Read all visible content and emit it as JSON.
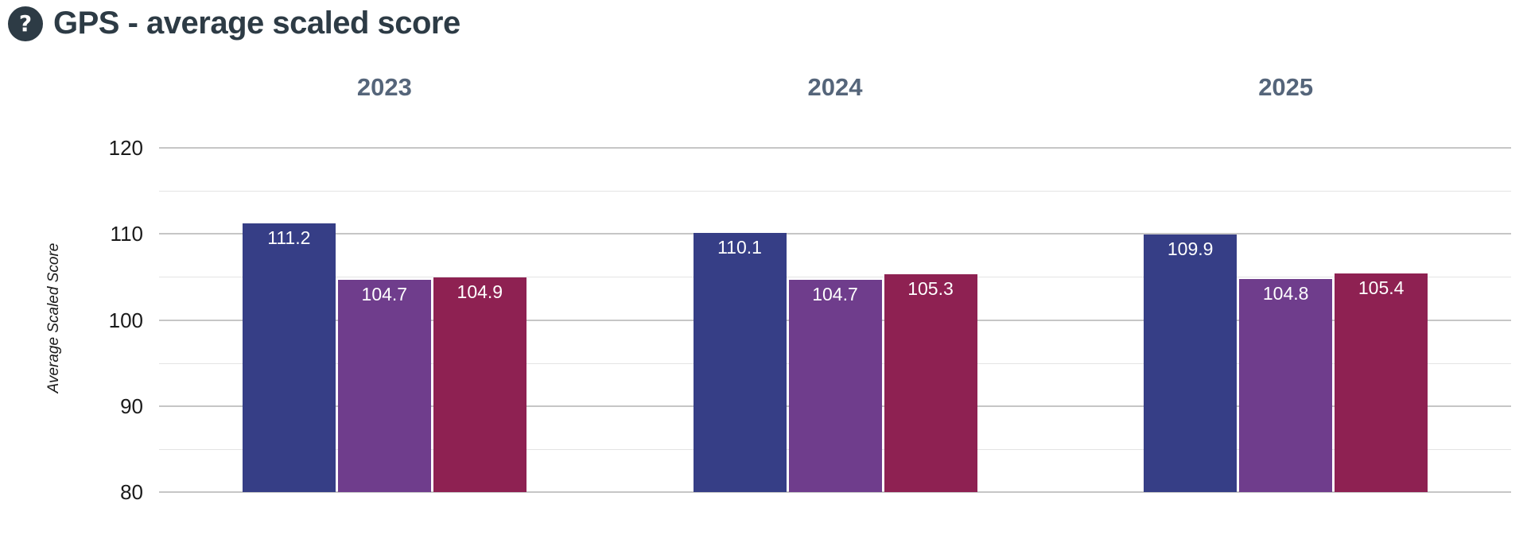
{
  "header": {
    "title": "GPS - average scaled score",
    "help_glyph": "?"
  },
  "colors": {
    "title": "#2d3b45",
    "facet_label": "#55657a",
    "axis_text": "#1a1a1a",
    "gridline_major": "#c6c6c6",
    "gridline_minor": "#e4e4e4",
    "background": "#ffffff",
    "bar_label_text": "#ffffff"
  },
  "chart_data": {
    "type": "bar",
    "title": "GPS - average scaled score",
    "categories": [
      "2023",
      "2024",
      "2025"
    ],
    "series": [
      {
        "name": "series-1",
        "color": "#363e86",
        "values": [
          111.2,
          110.1,
          109.9
        ]
      },
      {
        "name": "series-2",
        "color": "#6f3d8c",
        "values": [
          104.7,
          104.7,
          104.8
        ]
      },
      {
        "name": "series-3",
        "color": "#8e2152",
        "values": [
          104.9,
          105.3,
          105.4
        ]
      }
    ],
    "xlabel": "",
    "ylabel": "Average Scaled Score",
    "ylim": [
      80,
      120
    ],
    "yticks": [
      80,
      90,
      100,
      110,
      120
    ],
    "gridline_step": 5,
    "grid": "on",
    "legend": "none",
    "value_labels": true,
    "value_label_format": "1-decimal"
  }
}
